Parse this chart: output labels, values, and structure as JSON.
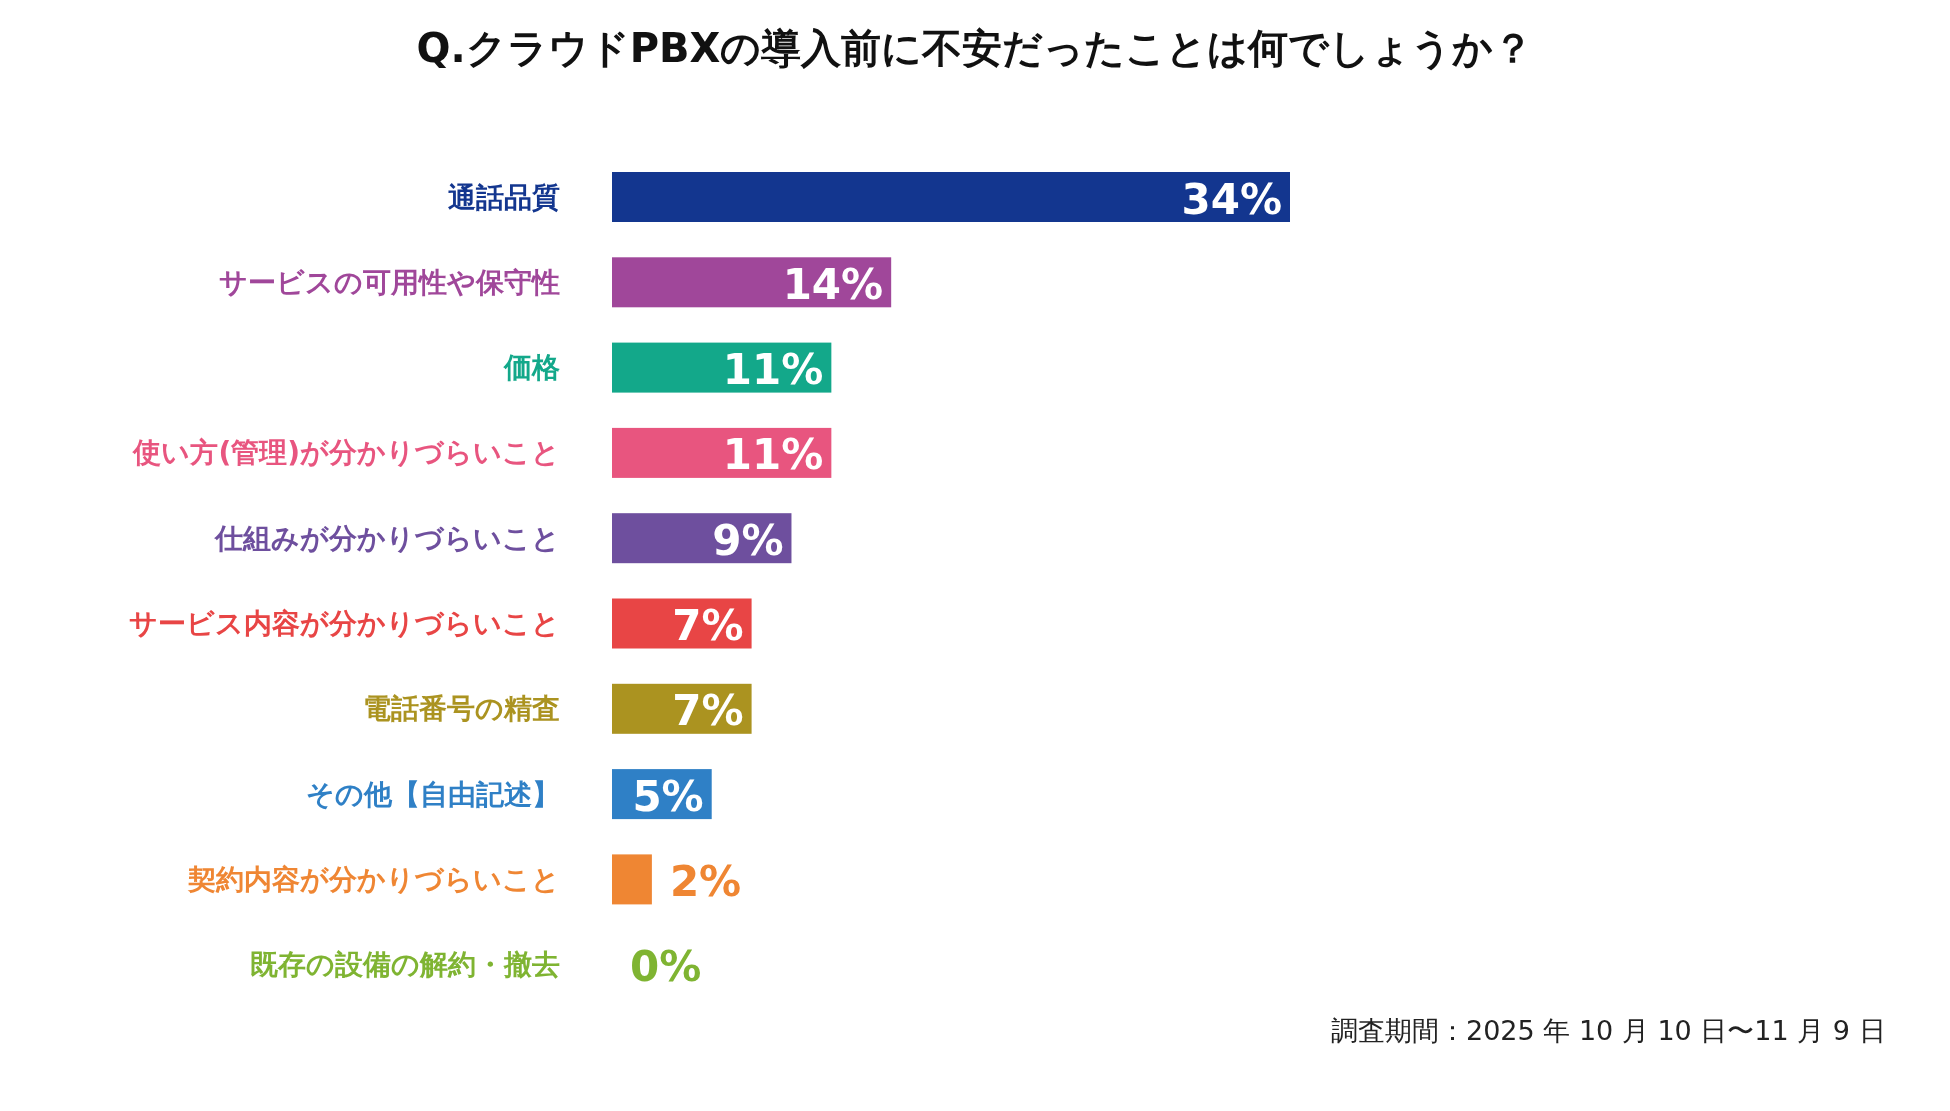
{
  "chart_data": {
    "type": "bar",
    "orientation": "horizontal",
    "title": "Q.クラウドPBXの導入前に不安だったことは何でしょうか？",
    "categories": [
      "通話品質",
      "サービスの可用性や保守性",
      "価格",
      "使い方(管理)が分かりづらいこと",
      "仕組みが分かりづらいこと",
      "サービス内容が分かりづらいこと",
      "電話番号の精査",
      "その他【自由記述】",
      "契約内容が分かりづらいこと",
      "既存の設備の解約・撤去"
    ],
    "values": [
      34,
      14,
      11,
      11,
      9,
      7,
      7,
      5,
      2,
      0
    ],
    "colors": [
      "#13368f",
      "#a0479a",
      "#13a88a",
      "#e8557f",
      "#6e4f9e",
      "#e84545",
      "#ab9320",
      "#2f80c6",
      "#ef8633",
      "#7fb432"
    ],
    "value_labels": [
      "34%",
      "14%",
      "11%",
      "11%",
      "9%",
      "7%",
      "7%",
      "5%",
      "2%",
      "0%"
    ],
    "annotations": [
      "調査期間：2025 年 10 月 10 日〜11 月 9 日"
    ]
  }
}
